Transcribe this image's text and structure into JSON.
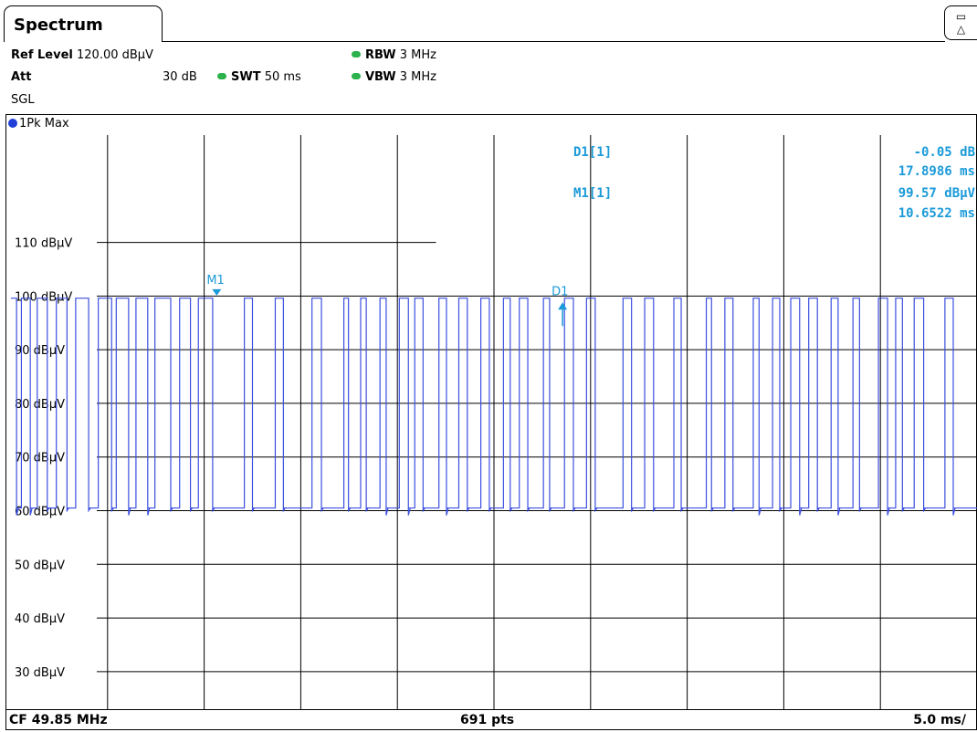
{
  "tab": {
    "title": "Spectrum"
  },
  "header": {
    "ref_level_label": "Ref Level",
    "ref_level_value": "120.00 dBµV",
    "att_label": "Att",
    "att_value": "30 dB",
    "swt_label": "SWT",
    "swt_value": "50 ms",
    "rbw_label": "RBW",
    "rbw_value": "3 MHz",
    "vbw_label": "VBW",
    "vbw_value": "3 MHz",
    "mode": "SGL",
    "status_dot_color": "#2bb24c"
  },
  "trace_label": "1Pk Max",
  "footer": {
    "center_freq": "CF 49.85 MHz",
    "points": "691 pts",
    "per_div": "5.0 ms/"
  },
  "colors": {
    "trace": "#3b4fe0",
    "marker": "#1a9ad8",
    "grid": "#000000"
  },
  "chart_data": {
    "type": "line",
    "title": "",
    "xlabel": "",
    "ylabel": "",
    "xlim": [
      0,
      50
    ],
    "x_unit": "ms",
    "ylim": [
      23,
      130
    ],
    "y_ticks": [
      110,
      100,
      90,
      80,
      70,
      60,
      50,
      40,
      30
    ],
    "y_tick_labels": [
      "110 dBµV",
      "100 dBµV",
      "90 dBµV",
      "80 dBµV",
      "70 dBµV",
      "60 dBµV",
      "50 dBµV",
      "40 dBµV",
      "30 dBµV"
    ],
    "grid": true,
    "series": [
      {
        "high_level": 99.6,
        "low_level": 60.5,
        "x": [
          0.0,
          0.29,
          0.54,
          1.0,
          1.36,
          1.88,
          2.35,
          2.9,
          3.35,
          4.02,
          4.52,
          5.21,
          5.45,
          6.09,
          6.47,
          7.08,
          7.45,
          8.27,
          8.73,
          9.29,
          9.7,
          10.44,
          12.08,
          12.5,
          13.68,
          14.1,
          15.58,
          16.07,
          17.23,
          17.47,
          18.1,
          18.39,
          19.1,
          19.42,
          20.1,
          20.57,
          20.9,
          21.33,
          22.15,
          22.54,
          23.18,
          23.62,
          24.32,
          24.76,
          25.49,
          25.84,
          26.31,
          26.75,
          27.56,
          27.88,
          28.65,
          29.11,
          29.79,
          30.24,
          31.68,
          32.12,
          32.8,
          33.26,
          34.31,
          34.69,
          35.99,
          36.26,
          36.95,
          37.37,
          38.42,
          38.72,
          39.42,
          39.79,
          40.36,
          40.82,
          41.29,
          41.74,
          42.45,
          42.81,
          43.58,
          43.92,
          44.9,
          45.37,
          45.79,
          46.14,
          46.75,
          47.24,
          48.34,
          48.77,
          50.0
        ],
        "state": [
          1,
          0,
          1,
          0,
          1,
          0,
          1,
          0,
          1,
          0,
          1,
          0,
          1,
          0,
          1,
          0,
          1,
          0,
          1,
          0,
          1,
          0,
          1,
          0,
          1,
          0,
          1,
          0,
          1,
          0,
          1,
          0,
          1,
          0,
          1,
          0,
          1,
          0,
          1,
          0,
          1,
          0,
          1,
          0,
          1,
          0,
          1,
          0,
          1,
          0,
          1,
          0,
          1,
          0,
          1,
          0,
          1,
          0,
          1,
          0,
          1,
          0,
          1,
          0,
          1,
          0,
          1,
          0,
          1,
          0,
          1,
          0,
          1,
          0,
          1,
          0,
          1,
          0,
          1,
          0,
          1,
          0,
          1,
          0,
          1
        ]
      }
    ],
    "markers": [
      {
        "name": "M1",
        "x": 10.65,
        "y": 99.57,
        "dir": "down"
      },
      {
        "name": "D1",
        "x": 28.55,
        "y": 99.5,
        "dir": "up"
      }
    ],
    "marker_readouts": [
      {
        "label": "D1[1]",
        "value": "-0.05 dB"
      },
      {
        "label": "",
        "value": "17.8986 ms"
      },
      {
        "label": "M1[1]",
        "value": "99.57 dBµV"
      },
      {
        "label": "",
        "value": "10.6522 ms"
      }
    ]
  }
}
